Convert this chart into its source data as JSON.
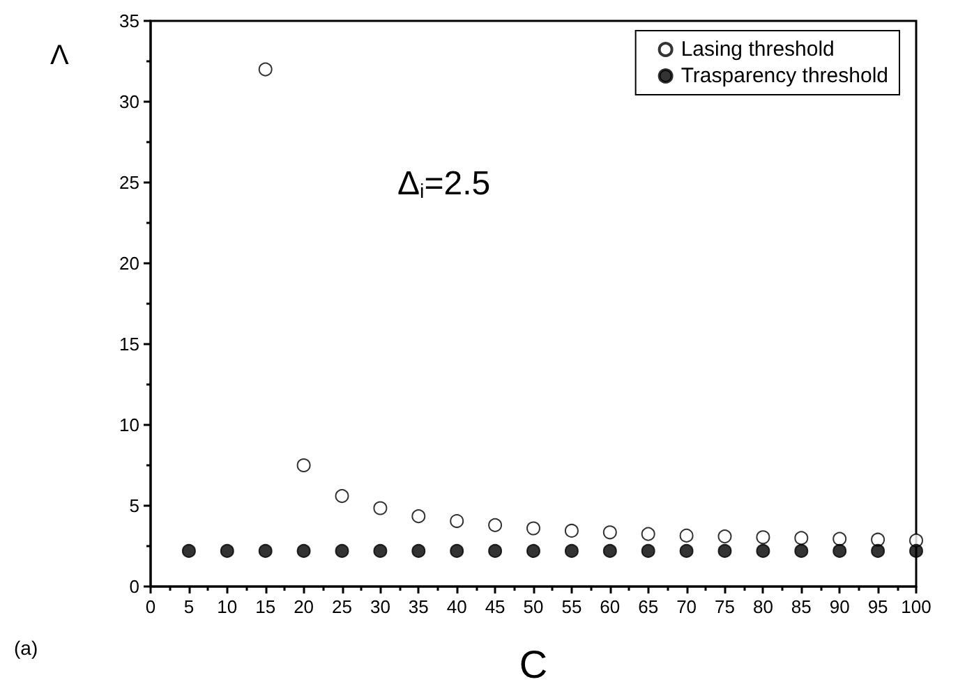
{
  "chart_data": {
    "type": "scatter",
    "xlabel": "C",
    "ylabel": "Λ",
    "annotations": [
      "Δ$_{i}$=2.5",
      "(a)"
    ],
    "series": [
      {
        "name": "Lasing threshold",
        "color": "#ffffff",
        "x": [
          15,
          20,
          25,
          30,
          35,
          40,
          45,
          50,
          55,
          60,
          65,
          70,
          75,
          80,
          85,
          90,
          95,
          100
        ],
        "values": [
          32,
          7.5,
          5.6,
          4.85,
          4.35,
          4.05,
          3.8,
          3.6,
          3.45,
          3.35,
          3.25,
          3.15,
          3.1,
          3.05,
          3.0,
          2.95,
          2.9,
          2.85
        ]
      },
      {
        "name": "Trasparency threshold",
        "color": "#000000",
        "x": [
          5,
          10,
          15,
          20,
          25,
          30,
          35,
          40,
          45,
          50,
          55,
          60,
          65,
          70,
          75,
          80,
          85,
          90,
          95,
          100
        ],
        "values": [
          2.2,
          2.2,
          2.2,
          2.2,
          2.2,
          2.2,
          2.2,
          2.2,
          2.2,
          2.2,
          2.2,
          2.2,
          2.2,
          2.2,
          2.2,
          2.2,
          2.2,
          2.2,
          2.2,
          2.2
        ]
      }
    ],
    "xlim": [
      0,
      100
    ],
    "xticks": [
      0,
      5,
      10,
      15,
      20,
      25,
      30,
      35,
      40,
      45,
      50,
      55,
      60,
      65,
      70,
      75,
      80,
      85,
      90,
      95,
      100
    ],
    "ylim": [
      0,
      35
    ],
    "yticks": [
      0,
      5,
      10,
      15,
      20,
      25,
      30,
      35
    ],
    "grid": false,
    "legend": "top right",
    "marker": "circle"
  }
}
